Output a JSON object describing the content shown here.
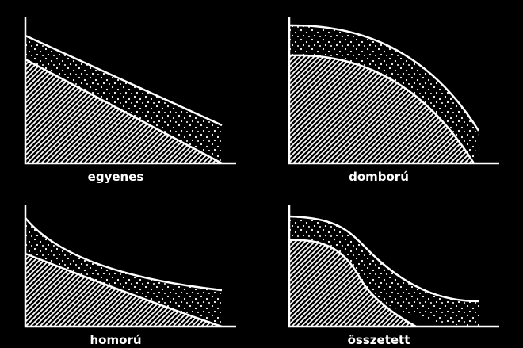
{
  "panels": [
    {
      "id": "egyenes",
      "label": "egyenes"
    },
    {
      "id": "domboru",
      "label": "domború"
    },
    {
      "id": "homoru",
      "label": "homorú"
    },
    {
      "id": "osszetett",
      "label": "összetett"
    }
  ],
  "colors": {
    "background": "#000000",
    "ink": "#ffffff"
  },
  "fills": {
    "lower_band": "diagonal-hatch",
    "upper_band": "stipple-dots"
  }
}
